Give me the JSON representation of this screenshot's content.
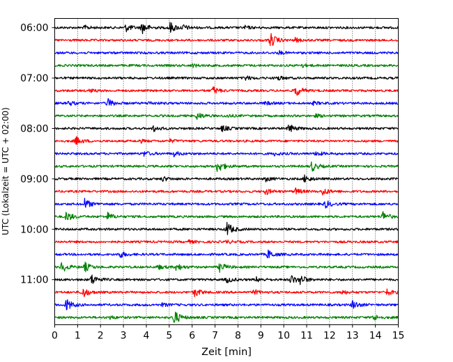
{
  "chart_data": {
    "type": "line",
    "subtype": "helicorder",
    "xlabel": "Zeit  [min]",
    "ylabel": "UTC (Lokalzeit = UTC + 02:00)",
    "xlim": [
      0,
      15
    ],
    "x_ticks": [
      "0",
      "1",
      "2",
      "3",
      "4",
      "5",
      "6",
      "7",
      "8",
      "9",
      "10",
      "11",
      "12",
      "13",
      "14",
      "15"
    ],
    "y_tick_labels": [
      "06:00",
      "07:00",
      "08:00",
      "09:00",
      "10:00",
      "11:00"
    ],
    "grid": "vertical-dotted",
    "trace_colors": [
      "#000000",
      "#ff0000",
      "#0000ff",
      "#008000"
    ],
    "traces": [
      {
        "start": "06:00",
        "color": "#000000",
        "events": [
          [
            1.3,
            0.25
          ],
          [
            3.1,
            0.5
          ],
          [
            3.8,
            0.8
          ],
          [
            5.0,
            0.8
          ],
          [
            5.6,
            0.3
          ],
          [
            8.3,
            0.2
          ]
        ]
      },
      {
        "start": "06:15",
        "color": "#ff0000",
        "events": [
          [
            9.4,
            1.0
          ],
          [
            10.5,
            0.25
          ]
        ]
      },
      {
        "start": "06:30",
        "color": "#0000ff",
        "events": [
          [
            9.8,
            0.2
          ]
        ]
      },
      {
        "start": "06:45",
        "color": "#008000",
        "events": [
          [
            6.0,
            0.2
          ],
          [
            10.8,
            0.2
          ]
        ]
      },
      {
        "start": "07:00",
        "color": "#000000",
        "events": [
          [
            8.3,
            0.3
          ],
          [
            9.7,
            0.3
          ]
        ]
      },
      {
        "start": "07:15",
        "color": "#ff0000",
        "events": [
          [
            1.5,
            0.2
          ],
          [
            6.9,
            0.5
          ],
          [
            10.5,
            0.8
          ]
        ]
      },
      {
        "start": "07:30",
        "color": "#0000ff",
        "events": [
          [
            0.6,
            0.3
          ],
          [
            2.3,
            0.6
          ],
          [
            4.1,
            0.2
          ],
          [
            9.2,
            0.2
          ],
          [
            11.3,
            0.2
          ]
        ]
      },
      {
        "start": "07:45",
        "color": "#008000",
        "events": [
          [
            6.2,
            0.5
          ],
          [
            7.5,
            0.2
          ],
          [
            11.4,
            0.2
          ]
        ]
      },
      {
        "start": "08:00",
        "color": "#000000",
        "events": [
          [
            4.3,
            0.4
          ],
          [
            7.3,
            0.4
          ],
          [
            10.2,
            0.6
          ]
        ]
      },
      {
        "start": "08:15",
        "color": "#ff0000",
        "events": [
          [
            0.9,
            0.6
          ],
          [
            3.7,
            0.2
          ],
          [
            5.0,
            0.2
          ]
        ]
      },
      {
        "start": "08:30",
        "color": "#0000ff",
        "events": [
          [
            3.9,
            0.3
          ],
          [
            5.2,
            0.3
          ],
          [
            9.6,
            0.2
          ],
          [
            11.4,
            0.3
          ]
        ]
      },
      {
        "start": "08:45",
        "color": "#008000",
        "events": [
          [
            7.1,
            0.9
          ],
          [
            11.2,
            0.7
          ]
        ]
      },
      {
        "start": "09:00",
        "color": "#000000",
        "events": [
          [
            4.7,
            0.3
          ],
          [
            9.2,
            0.3
          ],
          [
            10.9,
            0.5
          ]
        ]
      },
      {
        "start": "09:15",
        "color": "#ff0000",
        "events": [
          [
            9.2,
            0.4
          ],
          [
            10.5,
            0.4
          ],
          [
            11.7,
            0.5
          ]
        ]
      },
      {
        "start": "09:30",
        "color": "#0000ff",
        "events": [
          [
            1.3,
            0.7
          ],
          [
            11.8,
            0.5
          ]
        ]
      },
      {
        "start": "09:45",
        "color": "#008000",
        "events": [
          [
            0.5,
            0.7
          ],
          [
            2.3,
            0.5
          ],
          [
            14.3,
            0.7
          ]
        ]
      },
      {
        "start": "10:00",
        "color": "#000000",
        "events": [
          [
            7.5,
            1.0
          ]
        ]
      },
      {
        "start": "10:15",
        "color": "#ff0000",
        "events": [
          [
            5.8,
            0.2
          ],
          [
            7.5,
            0.2
          ]
        ]
      },
      {
        "start": "10:30",
        "color": "#0000ff",
        "events": [
          [
            2.8,
            0.5
          ],
          [
            9.3,
            0.6
          ]
        ]
      },
      {
        "start": "10:45",
        "color": "#008000",
        "events": [
          [
            0.3,
            0.7
          ],
          [
            1.3,
            0.6
          ],
          [
            4.5,
            0.3
          ],
          [
            5.3,
            0.5
          ],
          [
            7.2,
            0.6
          ]
        ]
      },
      {
        "start": "11:00",
        "color": "#000000",
        "events": [
          [
            1.6,
            0.7
          ],
          [
            7.5,
            0.4
          ],
          [
            8.8,
            0.3
          ],
          [
            10.3,
            0.6
          ],
          [
            10.7,
            0.6
          ]
        ]
      },
      {
        "start": "11:15",
        "color": "#ff0000",
        "events": [
          [
            1.2,
            0.8
          ],
          [
            6.1,
            0.6
          ],
          [
            8.7,
            0.3
          ],
          [
            12.5,
            0.3
          ],
          [
            14.5,
            0.4
          ]
        ]
      },
      {
        "start": "11:30",
        "color": "#0000ff",
        "events": [
          [
            0.5,
            0.8
          ],
          [
            4.7,
            0.2
          ],
          [
            13.0,
            0.6
          ]
        ]
      },
      {
        "start": "11:45",
        "color": "#008000",
        "events": [
          [
            2.4,
            0.2
          ],
          [
            5.2,
            1.0
          ],
          [
            13.9,
            0.4
          ]
        ]
      }
    ]
  }
}
